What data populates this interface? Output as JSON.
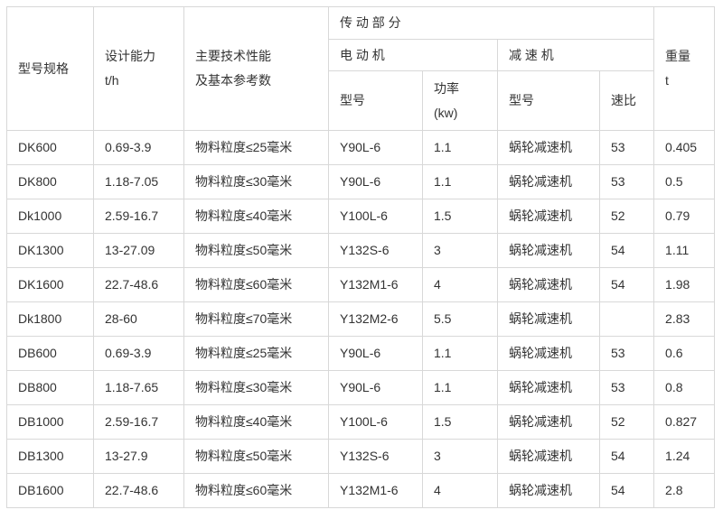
{
  "table": {
    "header": {
      "model_spec": "型号规格",
      "design_capacity": "设计能力\nt/h",
      "tech_performance": "主要技术性能\n及基本参考数",
      "transmission_group": "传 动 部 分",
      "motor_group": "电 动 机",
      "reducer_group": "减 速 机",
      "motor_model": "型号",
      "motor_power": "功率\n(kw)",
      "reducer_model": "型号",
      "speed_ratio": "速比",
      "weight": "重量\nt"
    },
    "rows": [
      [
        "DK600",
        "0.69-3.9",
        "物料粒度≤25毫米",
        "Y90L-6",
        "1.1",
        "蜗轮减速机",
        "53",
        "0.405"
      ],
      [
        "DK800",
        "1.18-7.05",
        "物料粒度≤30毫米",
        "Y90L-6",
        "1.1",
        "蜗轮减速机",
        "53",
        "0.5"
      ],
      [
        "Dk1000",
        "2.59-16.7",
        "物料粒度≤40毫米",
        "Y100L-6",
        "1.5",
        "蜗轮减速机",
        "52",
        "0.79"
      ],
      [
        "DK1300",
        "13-27.09",
        "物料粒度≤50毫米",
        "Y132S-6",
        "3",
        "蜗轮减速机",
        "54",
        "1.11"
      ],
      [
        "DK1600",
        "22.7-48.6",
        "物料粒度≤60毫米",
        "Y132M1-6",
        "4",
        "蜗轮减速机",
        "54",
        "1.98"
      ],
      [
        "Dk1800",
        "28-60",
        "物料粒度≤70毫米",
        "Y132M2-6",
        "5.5",
        "蜗轮减速机",
        "",
        "2.83"
      ],
      [
        "DB600",
        "0.69-3.9",
        "物料粒度≤25毫米",
        "Y90L-6",
        "1.1",
        "蜗轮减速机",
        "53",
        "0.6"
      ],
      [
        "DB800",
        "1.18-7.65",
        "物料粒度≤30毫米",
        "Y90L-6",
        "1.1",
        "蜗轮减速机",
        "53",
        "0.8"
      ],
      [
        "DB1000",
        "2.59-16.7",
        "物料粒度≤40毫米",
        "Y100L-6",
        "1.5",
        "蜗轮减速机",
        "52",
        "0.827"
      ],
      [
        "DB1300",
        "13-27.9",
        "物料粒度≤50毫米",
        "Y132S-6",
        "3",
        "蜗轮减速机",
        "54",
        "1.24"
      ],
      [
        "DB1600",
        "22.7-48.6",
        "物料粒度≤60毫米",
        "Y132M1-6",
        "4",
        "蜗轮减速机",
        "54",
        "2.8"
      ]
    ],
    "colors": {
      "border": "#d8d8d8",
      "text": "#333333",
      "background": "#ffffff"
    }
  }
}
